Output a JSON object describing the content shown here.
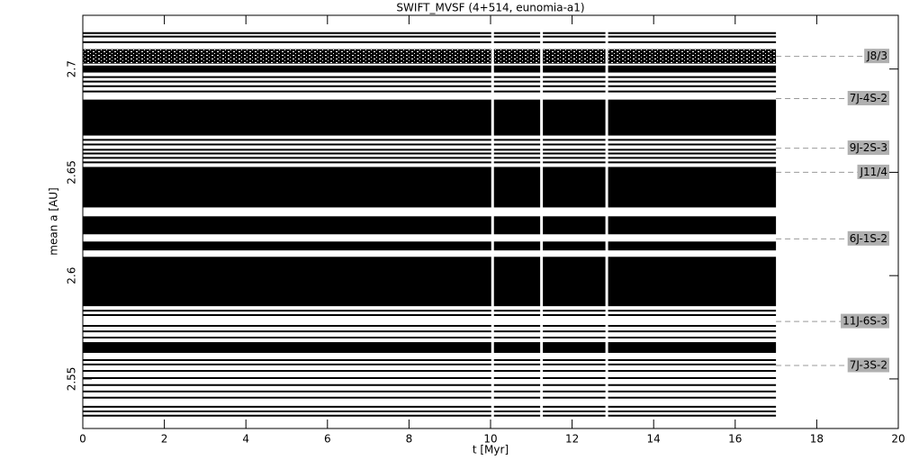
{
  "chart_data": {
    "type": "track",
    "title": "SWIFT_MVSF (4+514, eunomia-a1)",
    "xlabel": "t [Myr]",
    "ylabel": "mean a [AU]",
    "xlim": [
      0,
      20
    ],
    "ylim": [
      2.526,
      2.726
    ],
    "xticks": [
      0,
      2,
      4,
      6,
      8,
      10,
      12,
      14,
      16,
      18,
      20
    ],
    "yticks": [
      2.55,
      2.6,
      2.65,
      2.7
    ],
    "t_end": 17,
    "gaps": [
      10.05,
      11.25,
      12.85
    ],
    "color": "#000000",
    "tracks": [
      2.7174,
      2.7157,
      2.713,
      2.6961,
      2.6939,
      2.6917,
      2.6891,
      2.6657,
      2.6635,
      2.6609,
      2.6591,
      2.657,
      2.6548,
      2.583,
      2.5809,
      2.5757,
      2.573,
      2.57,
      2.5591,
      2.557,
      2.5539,
      2.5504,
      2.547,
      2.5439,
      2.5409,
      2.5365,
      2.5343,
      2.5322
    ],
    "bands": [
      [
        2.6983,
        2.7017
      ],
      [
        2.6678,
        2.6852
      ],
      [
        2.633,
        2.6526
      ],
      [
        2.62,
        2.6287
      ],
      [
        2.6122,
        2.6165
      ],
      [
        2.5852,
        2.6091
      ],
      [
        2.5626,
        2.5678
      ]
    ],
    "chaotic_bands": [
      [
        2.7026,
        2.7096
      ]
    ],
    "resonances": [
      {
        "label": "J8/3",
        "a": 2.7061
      },
      {
        "label": "7J-4S-2",
        "a": 2.6857
      },
      {
        "label": "9J-2S-3",
        "a": 2.6617
      },
      {
        "label": "J11/4",
        "a": 2.65
      },
      {
        "label": "6J-1S-2",
        "a": 2.6178
      },
      {
        "label": "11J-6S-3",
        "a": 2.5778
      },
      {
        "label": "7J-3S-2",
        "a": 2.5565
      }
    ]
  }
}
